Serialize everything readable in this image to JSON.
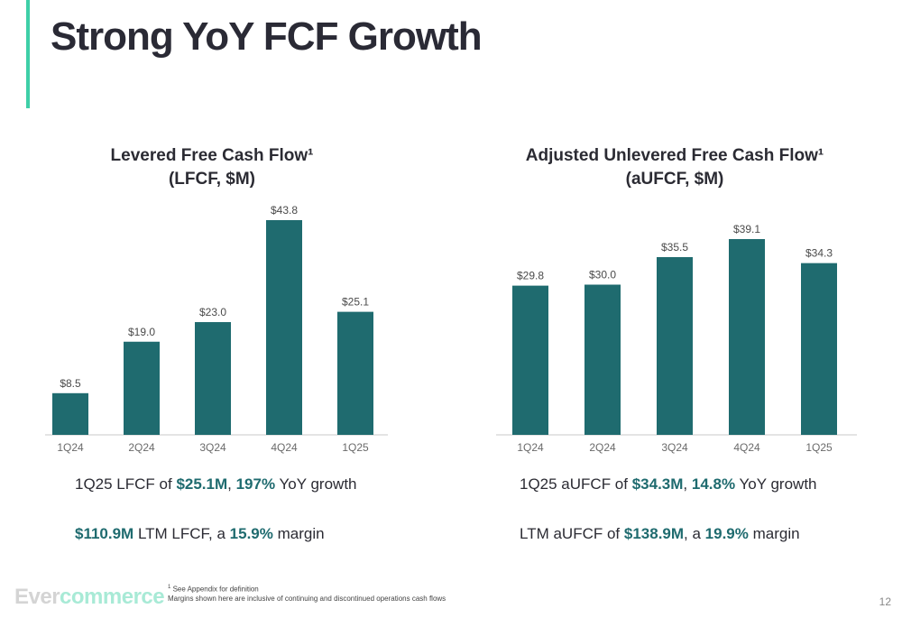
{
  "slide": {
    "title": "Strong YoY FCF Growth",
    "page_number": "12"
  },
  "accent_color": "#3ecfa7",
  "bar_color": "#1f6b6f",
  "chart_data": [
    {
      "type": "bar",
      "title": "Levered Free Cash Flow¹",
      "subtitle": "(LFCF, $M)",
      "categories": [
        "1Q24",
        "2Q24",
        "3Q24",
        "4Q24",
        "1Q25"
      ],
      "values": [
        8.5,
        19.0,
        23.0,
        43.8,
        25.1
      ],
      "labels": [
        "$8.5",
        "$19.0",
        "$23.0",
        "$43.8",
        "$25.1"
      ],
      "grid": false
    },
    {
      "type": "bar",
      "title": "Adjusted Unlevered Free Cash Flow¹",
      "subtitle": "(aUFCF, $M)",
      "categories": [
        "1Q24",
        "2Q24",
        "3Q24",
        "4Q24",
        "1Q25"
      ],
      "values": [
        29.8,
        30.0,
        35.5,
        39.1,
        34.3
      ],
      "labels": [
        "$29.8",
        "$30.0",
        "$35.5",
        "$39.1",
        "$34.3"
      ],
      "grid": false
    }
  ],
  "callouts": {
    "left_1": {
      "pre": "1Q25 LFCF of ",
      "v1": "$25.1M",
      "mid": ", ",
      "v2": "197%",
      "post": " YoY growth"
    },
    "left_2": {
      "v1": "$110.9M",
      "mid": " LTM LFCF, a ",
      "v2": "15.9%",
      "post": " margin"
    },
    "right_1": {
      "pre": "1Q25 aUFCF of ",
      "v1": "$34.3M",
      "mid": ", ",
      "v2": "14.8%",
      "post": " YoY growth"
    },
    "right_2": {
      "pre": "LTM aUFCF of ",
      "v1": "$138.9M",
      "mid": ", a ",
      "v2": "19.9%",
      "post": " margin"
    }
  },
  "footnote": {
    "marker": "1",
    "line1": " See Appendix for definition",
    "line2": "Margins shown here are inclusive of continuing and discontinued operations cash flows"
  },
  "logo": {
    "part1": "Ever",
    "part2": "commerce"
  }
}
